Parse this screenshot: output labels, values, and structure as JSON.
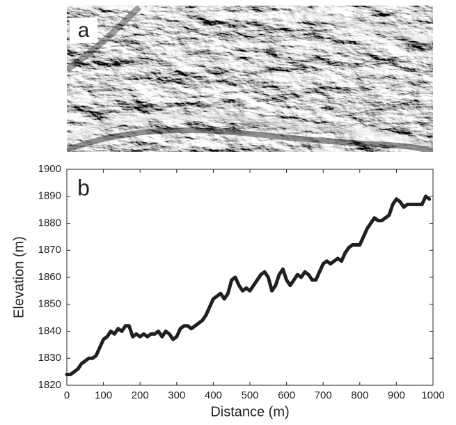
{
  "image_panel": {
    "label": "a"
  },
  "chart_data": {
    "type": "line",
    "panel_label": "b",
    "xlabel": "Distance (m)",
    "ylabel": "Elevation (m)",
    "x": [
      0,
      10,
      20,
      30,
      40,
      50,
      60,
      70,
      80,
      90,
      100,
      110,
      120,
      130,
      140,
      150,
      160,
      170,
      180,
      190,
      200,
      210,
      220,
      230,
      240,
      250,
      260,
      270,
      280,
      290,
      300,
      310,
      320,
      330,
      340,
      350,
      360,
      370,
      380,
      390,
      400,
      410,
      420,
      430,
      440,
      450,
      460,
      470,
      480,
      490,
      500,
      510,
      520,
      530,
      540,
      550,
      560,
      570,
      580,
      590,
      600,
      610,
      620,
      630,
      640,
      650,
      660,
      670,
      680,
      690,
      700,
      710,
      720,
      730,
      740,
      750,
      760,
      770,
      780,
      790,
      800,
      810,
      820,
      830,
      840,
      850,
      860,
      870,
      880,
      890,
      900,
      910,
      920,
      930,
      940,
      950,
      960,
      970,
      980,
      990
    ],
    "series": [
      {
        "color": "#231f20",
        "values": [
          1824,
          1824,
          1825,
          1826,
          1828,
          1829,
          1830,
          1830,
          1831,
          1834,
          1837,
          1838,
          1840,
          1839,
          1841,
          1840,
          1842,
          1842,
          1838,
          1839,
          1838,
          1839,
          1838,
          1839,
          1839,
          1840,
          1838,
          1840,
          1839,
          1837,
          1838,
          1841,
          1842,
          1842,
          1841,
          1842,
          1843,
          1844,
          1846,
          1849,
          1852,
          1853,
          1854,
          1852,
          1854,
          1859,
          1860,
          1857,
          1855,
          1856,
          1855,
          1857,
          1859,
          1861,
          1862,
          1860,
          1855,
          1857,
          1861,
          1863,
          1859,
          1857,
          1859,
          1861,
          1860,
          1862,
          1861,
          1859,
          1859,
          1862,
          1865,
          1866,
          1865,
          1866,
          1867,
          1866,
          1869,
          1871,
          1872,
          1872,
          1872,
          1875,
          1878,
          1880,
          1882,
          1881,
          1881,
          1882,
          1883,
          1887,
          1889,
          1888,
          1886,
          1887,
          1887,
          1887,
          1887,
          1887,
          1890,
          1889
        ]
      }
    ],
    "xlim": [
      0,
      1000
    ],
    "xticks": [
      0,
      100,
      200,
      300,
      400,
      500,
      600,
      700,
      800,
      900,
      1000
    ],
    "ylim": [
      1820,
      1900
    ],
    "yticks": [
      1820,
      1830,
      1840,
      1850,
      1860,
      1870,
      1880,
      1890,
      1900
    ]
  }
}
